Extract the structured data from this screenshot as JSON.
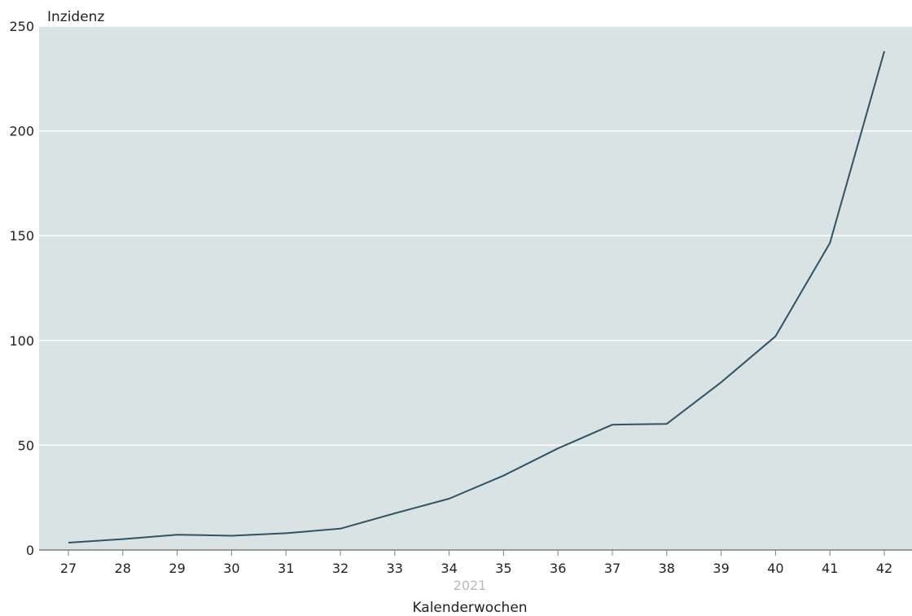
{
  "chart_data": {
    "type": "line",
    "title": "",
    "xlabel": "Kalenderwochen",
    "xsublabel": "2021",
    "ylabel": "Inzidenz",
    "ylim": [
      0,
      250
    ],
    "yticks": [
      0,
      50,
      100,
      150,
      200,
      250
    ],
    "grid": true,
    "categories": [
      "27",
      "28",
      "29",
      "30",
      "31",
      "32",
      "33",
      "34",
      "35",
      "36",
      "37",
      "38",
      "39",
      "40",
      "41",
      "42"
    ],
    "series": [
      {
        "name": "",
        "color": "#2b5468",
        "values": [
          3.5,
          5.2,
          7.3,
          6.8,
          8.0,
          10.2,
          17.5,
          24.5,
          35.5,
          48.5,
          59.8,
          60.2,
          80.0,
          102.0,
          146.5,
          238.0
        ]
      }
    ]
  },
  "colors": {
    "plot_background": "#d9e3e4",
    "gridline": "#ffffff",
    "baseline": "#7f7f7f"
  }
}
